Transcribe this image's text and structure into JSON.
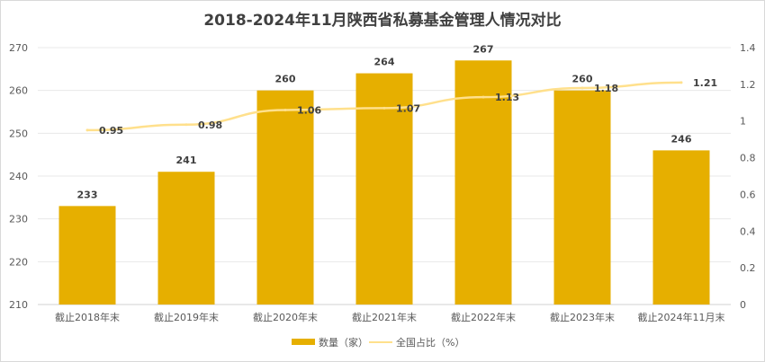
{
  "chart_data": {
    "type": "bar+line",
    "title": "2018-2024年11月陕西省私募基金管理人情况对比",
    "categories": [
      "截止2018年末",
      "截止2019年末",
      "截止2020年末",
      "截止2021年末",
      "截止2022年末",
      "截止2023年末",
      "截止2024年11月末"
    ],
    "series": [
      {
        "name": "数量（家）",
        "type": "bar",
        "axis": "left",
        "values": [
          233,
          241,
          260,
          264,
          267,
          260,
          246
        ],
        "color": "#E6AF00"
      },
      {
        "name": "全国占比（%）",
        "type": "line",
        "axis": "right",
        "values": [
          0.95,
          0.98,
          1.06,
          1.07,
          1.13,
          1.18,
          1.21
        ],
        "color": "#FFE08C"
      }
    ],
    "y_left": {
      "min": 210,
      "max": 270,
      "ticks": [
        210,
        220,
        230,
        240,
        250,
        260,
        270
      ]
    },
    "y_right": {
      "min": 0,
      "max": 1.4,
      "ticks": [
        "0",
        "0.2",
        "0.4",
        "0.6",
        "0.8",
        "1",
        "1.2",
        "1.4"
      ]
    },
    "grid": true,
    "legend": "bottom-center"
  }
}
